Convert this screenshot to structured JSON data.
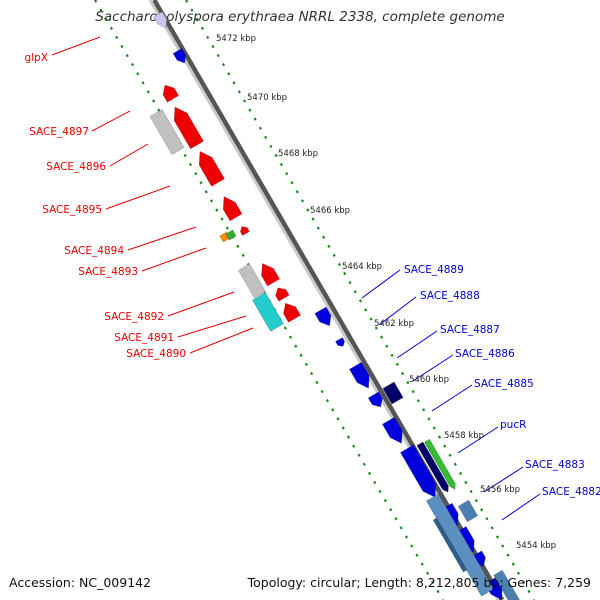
{
  "title": "Saccharopolyspora erythraea NRRL 2338, complete genome",
  "accession": "Accession: NC_009142",
  "topology": "Topology: circular; Length: 8,212,805 bp; Genes: 7,259",
  "colors": {
    "reverse_label": "#e60000",
    "forward_label": "#0000cc",
    "backbone": "#8a8a8a",
    "tick_dots": "#1a8a1a"
  },
  "ticks": [
    "5472 kbp",
    "5470 kbp",
    "5468 kbp",
    "5466 kbp",
    "5464 kbp",
    "5462 kbp",
    "5460 kbp",
    "5458 kbp",
    "5456 kbp",
    "5454 kbp"
  ],
  "reverse_labels": [
    "glpX",
    "SACE_4897",
    "SACE_4896",
    "SACE_4895",
    "SACE_4894",
    "SACE_4893",
    "SACE_4892",
    "SACE_4891",
    "SACE_4890"
  ],
  "forward_labels": [
    "SACE_4889",
    "SACE_4888",
    "SACE_4887",
    "SACE_4886",
    "SACE_4885",
    "pucR",
    "SACE_4883",
    "SACE_4882"
  ]
}
